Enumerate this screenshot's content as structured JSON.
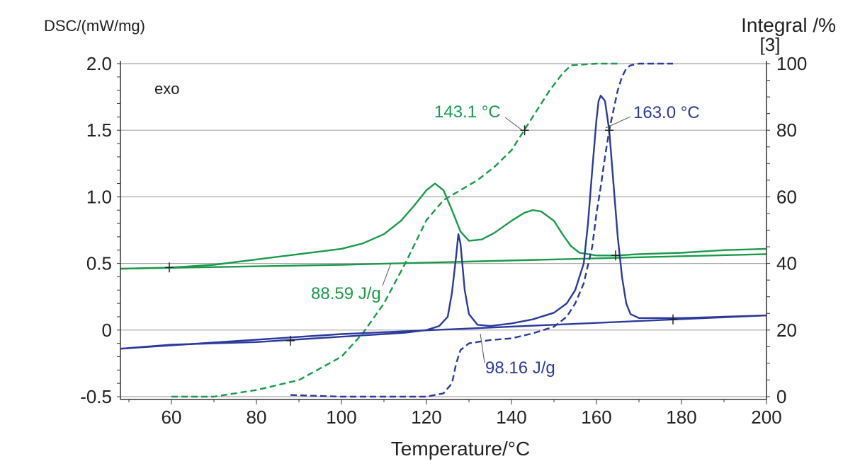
{
  "chart_data": {
    "type": "line",
    "ylabel_left": "DSC/(mW/mg)",
    "ylabel_right": "Integral /%",
    "ylabel_right_sub": "[3]",
    "xlabel": "Temperature/°C",
    "xlim": [
      48,
      200
    ],
    "ylim_left": [
      -0.5,
      2.0
    ],
    "ylim_right": [
      0,
      100
    ],
    "x_ticks": [
      60,
      80,
      100,
      120,
      140,
      160,
      180,
      200
    ],
    "y_left_ticks": [
      {
        "value": 2.0,
        "label": "2.0"
      },
      {
        "value": 1.5,
        "label": "1.5"
      },
      {
        "value": 1.0,
        "label": "1.0"
      },
      {
        "value": 0.5,
        "label": "0.5"
      },
      {
        "value": 0,
        "label": "0"
      },
      {
        "value": -0.5,
        "label": "-0.5"
      }
    ],
    "y_right_ticks": [
      {
        "value": 100,
        "label": "100"
      },
      {
        "value": 80,
        "label": "80"
      },
      {
        "value": 60,
        "label": "60"
      },
      {
        "value": 40,
        "label": "40"
      },
      {
        "value": 20,
        "label": "20"
      },
      {
        "value": 0,
        "label": "0"
      }
    ],
    "grid_y": true,
    "colors": {
      "green": "#1a9a4a",
      "blue": "#2b3a9c",
      "grid": "#a8a8a8",
      "axis": "#333333"
    },
    "annotations": {
      "exo": "exo",
      "green_peak": "143.1 °C",
      "blue_peak": "163.0 °C",
      "green_enthalpy": "88.59 J/g",
      "blue_enthalpy": "98.16 J/g"
    },
    "series": [
      {
        "color": "green",
        "axis": "left",
        "style": "solid",
        "points": [
          [
            48,
            0.46
          ],
          [
            60,
            0.47
          ],
          [
            70,
            0.49
          ],
          [
            80,
            0.53
          ],
          [
            90,
            0.57
          ],
          [
            100,
            0.61
          ],
          [
            105,
            0.65
          ],
          [
            110,
            0.72
          ],
          [
            114,
            0.82
          ],
          [
            117,
            0.93
          ],
          [
            120,
            1.05
          ],
          [
            122,
            1.1
          ],
          [
            124,
            1.05
          ],
          [
            126,
            0.9
          ],
          [
            128,
            0.74
          ],
          [
            130,
            0.67
          ],
          [
            133,
            0.68
          ],
          [
            136,
            0.73
          ],
          [
            140,
            0.82
          ],
          [
            143,
            0.88
          ],
          [
            145,
            0.9
          ],
          [
            147,
            0.89
          ],
          [
            150,
            0.82
          ],
          [
            152,
            0.72
          ],
          [
            154,
            0.63
          ],
          [
            156,
            0.58
          ],
          [
            160,
            0.56
          ],
          [
            165,
            0.56
          ],
          [
            170,
            0.57
          ],
          [
            180,
            0.58
          ],
          [
            190,
            0.6
          ],
          [
            200,
            0.61
          ]
        ]
      },
      {
        "color": "green",
        "axis": "left",
        "style": "solid",
        "points": [
          [
            48,
            0.46
          ],
          [
            100,
            0.49
          ],
          [
            150,
            0.53
          ],
          [
            200,
            0.57
          ]
        ]
      },
      {
        "color": "green",
        "axis": "right",
        "style": "dashed",
        "points": [
          [
            60,
            0
          ],
          [
            70,
            0
          ],
          [
            80,
            2
          ],
          [
            90,
            5
          ],
          [
            100,
            12
          ],
          [
            105,
            19
          ],
          [
            110,
            28
          ],
          [
            115,
            40
          ],
          [
            120,
            53
          ],
          [
            124,
            59
          ],
          [
            128,
            62
          ],
          [
            132,
            65
          ],
          [
            136,
            69
          ],
          [
            140,
            74
          ],
          [
            143,
            80
          ],
          [
            146,
            86
          ],
          [
            149,
            92
          ],
          [
            152,
            97
          ],
          [
            154,
            99.5
          ],
          [
            160,
            100
          ],
          [
            165,
            100
          ]
        ]
      },
      {
        "color": "blue",
        "axis": "left",
        "style": "solid",
        "points": [
          [
            48,
            -0.14
          ],
          [
            60,
            -0.11
          ],
          [
            70,
            -0.1
          ],
          [
            80,
            -0.09
          ],
          [
            90,
            -0.07
          ],
          [
            100,
            -0.05
          ],
          [
            110,
            -0.03
          ],
          [
            115,
            -0.02
          ],
          [
            120,
            0.0
          ],
          [
            123,
            0.03
          ],
          [
            125,
            0.1
          ],
          [
            126,
            0.28
          ],
          [
            127,
            0.56
          ],
          [
            127.5,
            0.72
          ],
          [
            128,
            0.65
          ],
          [
            129,
            0.3
          ],
          [
            130,
            0.12
          ],
          [
            132,
            0.04
          ],
          [
            135,
            0.03
          ],
          [
            140,
            0.05
          ],
          [
            145,
            0.08
          ],
          [
            150,
            0.13
          ],
          [
            153,
            0.2
          ],
          [
            155,
            0.3
          ],
          [
            157,
            0.5
          ],
          [
            158,
            0.8
          ],
          [
            159,
            1.2
          ],
          [
            160,
            1.58
          ],
          [
            160.5,
            1.72
          ],
          [
            161,
            1.76
          ],
          [
            162,
            1.72
          ],
          [
            163,
            1.5
          ],
          [
            164,
            1.1
          ],
          [
            165,
            0.7
          ],
          [
            166,
            0.4
          ],
          [
            167,
            0.2
          ],
          [
            168,
            0.12
          ],
          [
            170,
            0.09
          ],
          [
            175,
            0.09
          ],
          [
            180,
            0.09
          ],
          [
            190,
            0.1
          ],
          [
            200,
            0.11
          ]
        ]
      },
      {
        "color": "blue",
        "axis": "left",
        "style": "solid",
        "points": [
          [
            48,
            -0.14
          ],
          [
            100,
            -0.03
          ],
          [
            150,
            0.04
          ],
          [
            200,
            0.11
          ]
        ]
      },
      {
        "color": "blue",
        "axis": "right",
        "style": "dashed",
        "points": [
          [
            88,
            0.5
          ],
          [
            100,
            0
          ],
          [
            110,
            0
          ],
          [
            120,
            0
          ],
          [
            124,
            1
          ],
          [
            126,
            4
          ],
          [
            127,
            10
          ],
          [
            128,
            14
          ],
          [
            130,
            16
          ],
          [
            135,
            17
          ],
          [
            140,
            17.5
          ],
          [
            145,
            19
          ],
          [
            150,
            21
          ],
          [
            153,
            24
          ],
          [
            155,
            28
          ],
          [
            157,
            34
          ],
          [
            159,
            45
          ],
          [
            160,
            55
          ],
          [
            161,
            63
          ],
          [
            162,
            72
          ],
          [
            163,
            80
          ],
          [
            164,
            86
          ],
          [
            165,
            92
          ],
          [
            166,
            96
          ],
          [
            167,
            98.5
          ],
          [
            168,
            99.5
          ],
          [
            170,
            100
          ],
          [
            178,
            100
          ]
        ]
      }
    ],
    "markers": [
      {
        "x": 59.5,
        "y": 0.47,
        "axis": "left"
      },
      {
        "x": 88,
        "y": -0.08,
        "axis": "left"
      },
      {
        "x": 143.1,
        "y": 80,
        "axis": "right"
      },
      {
        "x": 163.0,
        "y": 80,
        "axis": "right"
      },
      {
        "x": 164.5,
        "y": 0.56,
        "axis": "left"
      },
      {
        "x": 178,
        "y": 0.08,
        "axis": "left"
      }
    ]
  }
}
